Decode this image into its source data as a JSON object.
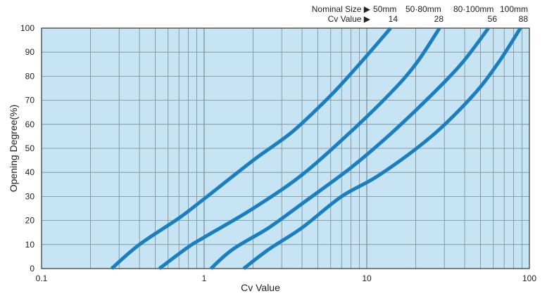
{
  "chart_data": {
    "type": "line",
    "title": "",
    "xlabel": "Cv Value",
    "ylabel": "Opening Degree(%)",
    "xscale": "log",
    "xlim": [
      0.1,
      100
    ],
    "ylim": [
      0,
      100
    ],
    "x_ticks": [
      {
        "value": 0.1,
        "label": "0.1"
      },
      {
        "value": 1,
        "label": "1"
      },
      {
        "value": 10,
        "label": "10"
      },
      {
        "value": 100,
        "label": "100"
      }
    ],
    "y_ticks": [
      0,
      10,
      20,
      30,
      40,
      50,
      60,
      70,
      80,
      90,
      100
    ],
    "grid": true,
    "plot_background": "#c6e4f3",
    "line_color": "#1a7fc1",
    "grid_color": "#7a8a94",
    "header": {
      "nominal_size_label": "Nominal Size ▶",
      "cv_value_label": "Cv Value ▶",
      "nominal_sizes": [
        "50mm",
        "50·80mm",
        "80·100mm",
        "100mm"
      ],
      "cv_values": [
        "14",
        "28",
        "56",
        "88"
      ]
    },
    "series": [
      {
        "x": [
          0.27,
          0.4,
          0.7,
          1.0,
          2.0,
          3.5,
          6.0,
          9.0,
          14.0
        ],
        "y": [
          0,
          10,
          21,
          29,
          45,
          57,
          72,
          85,
          100
        ]
      },
      {
        "x": [
          0.53,
          0.8,
          1.0,
          2.0,
          4.0,
          8.0,
          14.0,
          20.0,
          28.0
        ],
        "y": [
          0,
          9,
          13,
          25,
          39,
          57,
          73,
          85,
          100
        ]
      },
      {
        "x": [
          1.1,
          1.5,
          2.5,
          4.0,
          8.0,
          14.0,
          24.0,
          38.0,
          56.0
        ],
        "y": [
          0,
          8,
          17,
          27,
          42,
          56,
          71,
          85,
          100
        ]
      },
      {
        "x": [
          1.75,
          2.5,
          4.0,
          7.0,
          12.0,
          25.0,
          45.0,
          65.0,
          88.0
        ],
        "y": [
          0,
          8,
          17,
          30,
          39,
          55,
          72,
          86,
          100
        ]
      }
    ]
  }
}
